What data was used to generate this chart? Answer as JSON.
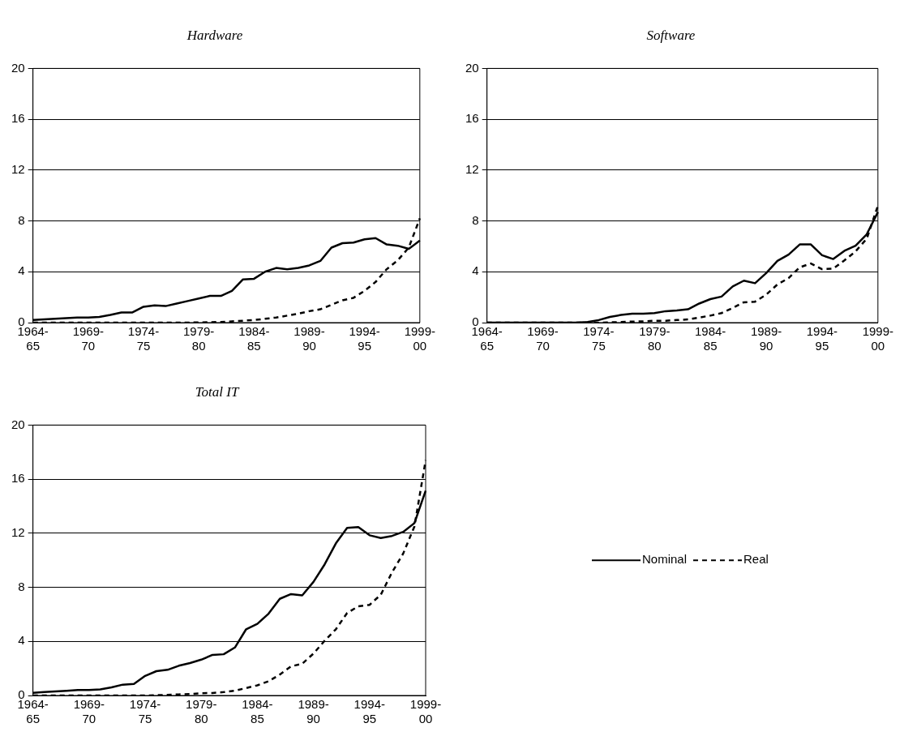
{
  "chart_data": [
    {
      "type": "line",
      "title": "Hardware",
      "categories": [
        "1964-65",
        null,
        null,
        null,
        null,
        "1969-70",
        null,
        null,
        null,
        null,
        "1974-75",
        null,
        null,
        null,
        null,
        "1979-80",
        null,
        null,
        null,
        null,
        "1984-85",
        null,
        null,
        null,
        null,
        "1989-90",
        null,
        null,
        null,
        null,
        "1994-95",
        null,
        null,
        null,
        null,
        "1999-00"
      ],
      "ylim": [
        0,
        20
      ],
      "yticks": [
        0,
        4,
        8,
        12,
        16,
        20
      ],
      "grid": "y",
      "legend": false,
      "marker": "none",
      "series": [
        {
          "color": "#000000",
          "line_style": "solid",
          "values": [
            0.2,
            0.25,
            0.3,
            0.35,
            0.4,
            0.4,
            0.45,
            0.6,
            0.8,
            0.8,
            1.25,
            1.35,
            1.3,
            1.5,
            1.7,
            1.9,
            2.1,
            2.1,
            2.5,
            3.4,
            3.45,
            4.0,
            4.3,
            4.2,
            4.3,
            4.5,
            4.85,
            5.9,
            6.25,
            6.3,
            6.55,
            6.65,
            6.15,
            6.05,
            5.8,
            6.45
          ]
        },
        {
          "color": "#000000",
          "line_style": "dashed",
          "values": [
            0,
            0,
            0,
            0,
            0,
            0,
            0,
            0,
            0,
            0,
            0,
            0,
            0,
            0,
            0,
            0.02,
            0.03,
            0.05,
            0.1,
            0.15,
            0.2,
            0.3,
            0.4,
            0.55,
            0.7,
            0.9,
            1.05,
            1.4,
            1.75,
            1.95,
            2.5,
            3.2,
            4.2,
            4.9,
            5.9,
            8.2
          ]
        }
      ]
    },
    {
      "type": "line",
      "title": "Software",
      "categories": [
        "1964-65",
        null,
        null,
        null,
        null,
        "1969-70",
        null,
        null,
        null,
        null,
        "1974-75",
        null,
        null,
        null,
        null,
        "1979-80",
        null,
        null,
        null,
        null,
        "1984-85",
        null,
        null,
        null,
        null,
        "1989-90",
        null,
        null,
        null,
        null,
        "1994-95",
        null,
        null,
        null,
        null,
        "1999-00"
      ],
      "ylim": [
        0,
        20
      ],
      "yticks": [
        0,
        4,
        8,
        12,
        16,
        20
      ],
      "grid": "y",
      "legend": false,
      "marker": "none",
      "series": [
        {
          "color": "#000000",
          "line_style": "solid",
          "values": [
            0,
            0,
            0,
            0,
            0,
            0,
            0,
            0,
            0,
            0.05,
            0.2,
            0.45,
            0.6,
            0.7,
            0.7,
            0.75,
            0.9,
            0.95,
            1.05,
            1.5,
            1.85,
            2.05,
            2.85,
            3.3,
            3.1,
            3.9,
            4.85,
            5.35,
            6.15,
            6.15,
            5.3,
            5.0,
            5.65,
            6.05,
            6.95,
            8.7
          ]
        },
        {
          "color": "#000000",
          "line_style": "dashed",
          "values": [
            0,
            0,
            0,
            0,
            0,
            0,
            0,
            0,
            0,
            0,
            0,
            0.02,
            0.05,
            0.08,
            0.1,
            0.15,
            0.15,
            0.2,
            0.25,
            0.4,
            0.55,
            0.75,
            1.15,
            1.6,
            1.65,
            2.2,
            3.0,
            3.5,
            4.35,
            4.65,
            4.2,
            4.25,
            4.9,
            5.6,
            6.6,
            9.2
          ]
        }
      ]
    },
    {
      "type": "line",
      "title": "Total IT",
      "categories": [
        "1964-65",
        null,
        null,
        null,
        null,
        "1969-70",
        null,
        null,
        null,
        null,
        "1974-75",
        null,
        null,
        null,
        null,
        "1979-80",
        null,
        null,
        null,
        null,
        "1984-85",
        null,
        null,
        null,
        null,
        "1989-90",
        null,
        null,
        null,
        null,
        "1994-95",
        null,
        null,
        null,
        null,
        "1999-00"
      ],
      "ylim": [
        0,
        20
      ],
      "yticks": [
        0,
        4,
        8,
        12,
        16,
        20
      ],
      "grid": "y",
      "legend": "right",
      "marker": "none",
      "series": [
        {
          "name": "Nominal",
          "color": "#000000",
          "line_style": "solid",
          "values": [
            0.2,
            0.25,
            0.3,
            0.35,
            0.4,
            0.4,
            0.45,
            0.6,
            0.8,
            0.85,
            1.45,
            1.8,
            1.9,
            2.2,
            2.4,
            2.65,
            3.0,
            3.05,
            3.55,
            4.9,
            5.3,
            6.05,
            7.15,
            7.5,
            7.4,
            8.4,
            9.7,
            11.25,
            12.4,
            12.45,
            11.85,
            11.65,
            11.8,
            12.1,
            12.75,
            15.15
          ]
        },
        {
          "name": "Real",
          "color": "#000000",
          "line_style": "dashed",
          "values": [
            0,
            0,
            0,
            0,
            0,
            0,
            0,
            0,
            0,
            0,
            0,
            0.02,
            0.05,
            0.08,
            0.1,
            0.17,
            0.18,
            0.25,
            0.35,
            0.55,
            0.75,
            1.05,
            1.55,
            2.15,
            2.35,
            3.1,
            4.05,
            4.9,
            6.1,
            6.6,
            6.7,
            7.45,
            9.1,
            10.5,
            12.5,
            17.4
          ]
        }
      ]
    }
  ]
}
